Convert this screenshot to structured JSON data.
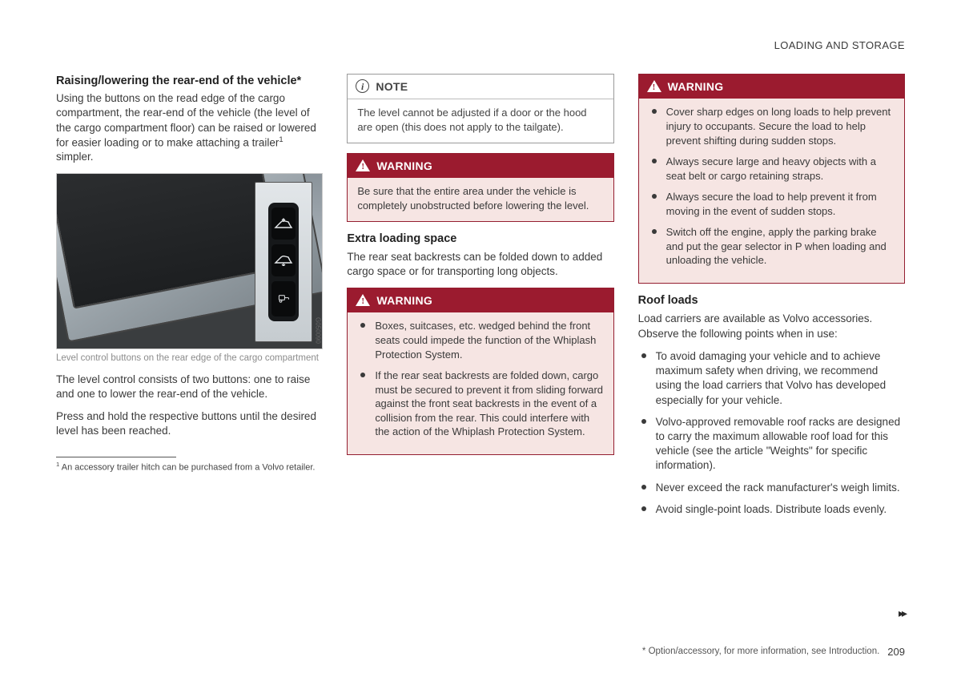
{
  "header": "LOADING AND STORAGE",
  "col1": {
    "h1": "Raising/lowering the rear-end of the vehicle",
    "h1_star": "*",
    "p1a": "Using the buttons on the read edge of the cargo compartment, the rear-end of the vehicle (the level of the cargo compartment floor) can be raised or lowered for easier loading or to make attaching a trailer",
    "p1_sup": "1",
    "p1b": " simpler.",
    "caption": "Level control buttons on the rear edge of the cargo compartment",
    "p2": "The level control consists of two buttons: one to raise and one to lower the rear-end of the vehicle.",
    "p3": "Press and hold the respective buttons until the desired level has been reached.",
    "footnote_sup": "1",
    "footnote": " An accessory trailer hitch can be purchased from a Volvo retailer.",
    "imgcode": "G050090"
  },
  "col2": {
    "note_title": "NOTE",
    "note_body": "The level cannot be adjusted if a door or the hood are open (this does not apply to the tailgate).",
    "warn1_title": "WARNING",
    "warn1_body": "Be sure that the entire area under the vehicle is completely unobstructed before lowering the level.",
    "h2": "Extra loading space",
    "p1": "The rear seat backrests can be folded down to added cargo space or for transporting long objects.",
    "warn2_title": "WARNING",
    "warn2_items": [
      "Boxes, suitcases, etc. wedged behind the front seats could impede the function of the Whiplash Protection System.",
      "If the rear seat backrests are folded down, cargo must be secured to prevent it from sliding forward against the front seat backrests in the event of a collision from the rear. This could interfere with the action of the Whiplash Protection System."
    ]
  },
  "col3": {
    "warn_title": "WARNING",
    "warn_items": [
      "Cover sharp edges on long loads to help prevent injury to occupants. Secure the load to help prevent shifting during sudden stops.",
      "Always secure large and heavy objects with a seat belt or cargo retaining straps.",
      "Always secure the load to help prevent it from moving in the event of sudden stops.",
      "Switch off the engine, apply the parking brake and put the gear selector in P when loading and unloading the vehicle."
    ],
    "h2": "Roof loads",
    "p1": "Load carriers are available as Volvo accessories. Observe the following points when in use:",
    "items": [
      "To avoid damaging your vehicle and to achieve maximum safety when driving, we recommend using the load carriers that Volvo has developed especially for your vehicle.",
      "Volvo-approved removable roof racks are designed to carry the maximum allowable roof load for this vehicle (see the article \"Weights\" for specific information).",
      "Never exceed the rack manufacturer's weigh limits.",
      "Avoid single-point loads. Distribute loads evenly."
    ]
  },
  "footer_note": "* Option/accessory, for more information, see Introduction.",
  "page_num": "209",
  "cont": "▸▸"
}
